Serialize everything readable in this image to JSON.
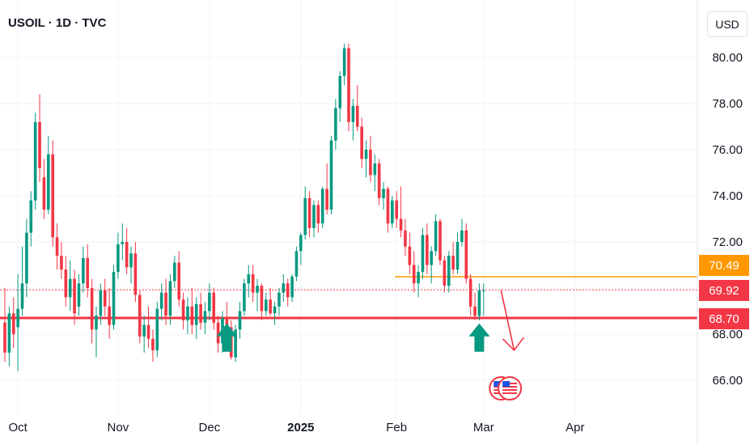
{
  "header": {
    "symbol_title": "USOIL · 1D · TVC",
    "currency": "USD"
  },
  "colors": {
    "up": "#089981",
    "down": "#f23645",
    "support": "#f23645",
    "resistance": "#ff9800",
    "last": "#f23645",
    "arrow": "#089981"
  },
  "price_tags": [
    {
      "value": "70.49",
      "kind": "resistance"
    },
    {
      "value": "69.92",
      "kind": "last"
    },
    {
      "value": "68.70",
      "kind": "support"
    }
  ],
  "chart_data": {
    "type": "candlestick",
    "title": "USOIL · 1D · TVC",
    "ylabel": "USD",
    "ylim": [
      65.0,
      81.3
    ],
    "y_ticks": [
      "66.00",
      "68.00",
      "70.00",
      "72.00",
      "74.00",
      "76.00",
      "78.00",
      "80.00"
    ],
    "x_ticks": [
      {
        "label": "Oct",
        "index": 3,
        "bold": false
      },
      {
        "label": "Nov",
        "index": 26,
        "bold": false
      },
      {
        "label": "Dec",
        "index": 47,
        "bold": false
      },
      {
        "label": "2025",
        "index": 68,
        "bold": true
      },
      {
        "label": "Feb",
        "index": 90,
        "bold": false
      },
      {
        "label": "Mar",
        "index": 110,
        "bold": false
      },
      {
        "label": "Apr",
        "index": 131,
        "bold": false
      }
    ],
    "x_count": 145,
    "candles": [
      [
        68.5,
        70.0,
        66.8,
        67.2
      ],
      [
        67.2,
        69.2,
        66.6,
        68.9
      ],
      [
        68.9,
        69.6,
        67.4,
        68.0
      ],
      [
        68.3,
        70.6,
        66.4,
        69.1
      ],
      [
        69.1,
        71.8,
        68.8,
        70.2
      ],
      [
        70.2,
        73.0,
        69.6,
        72.4
      ],
      [
        72.4,
        74.2,
        71.8,
        73.8
      ],
      [
        73.8,
        77.6,
        73.4,
        77.2
      ],
      [
        77.2,
        78.4,
        74.6,
        75.2
      ],
      [
        74.8,
        75.6,
        73.0,
        73.4
      ],
      [
        73.4,
        76.6,
        73.2,
        75.8
      ],
      [
        75.8,
        76.4,
        71.8,
        72.2
      ],
      [
        72.2,
        72.8,
        70.8,
        71.4
      ],
      [
        71.4,
        72.0,
        70.4,
        70.8
      ],
      [
        70.8,
        71.4,
        69.2,
        69.6
      ],
      [
        69.6,
        71.2,
        69.0,
        70.4
      ],
      [
        70.4,
        70.8,
        68.4,
        68.9
      ],
      [
        69.2,
        70.6,
        68.8,
        70.2
      ],
      [
        70.2,
        71.8,
        69.8,
        71.3
      ],
      [
        71.3,
        71.9,
        69.6,
        70.0
      ],
      [
        70.0,
        70.4,
        67.6,
        68.2
      ],
      [
        68.2,
        69.2,
        67.0,
        68.8
      ],
      [
        68.8,
        70.2,
        68.4,
        69.9
      ],
      [
        69.9,
        70.4,
        68.8,
        69.2
      ],
      [
        69.2,
        70.0,
        67.8,
        68.4
      ],
      [
        68.4,
        71.0,
        68.2,
        70.7
      ],
      [
        70.7,
        72.4,
        70.4,
        71.9
      ],
      [
        71.9,
        72.8,
        71.2,
        72.0
      ],
      [
        72.0,
        72.6,
        70.6,
        70.9
      ],
      [
        70.9,
        71.8,
        70.2,
        71.5
      ],
      [
        71.5,
        72.0,
        69.4,
        69.7
      ],
      [
        69.7,
        69.9,
        67.6,
        67.9
      ],
      [
        67.9,
        68.8,
        67.2,
        68.4
      ],
      [
        68.4,
        69.2,
        67.4,
        67.8
      ],
      [
        67.8,
        68.2,
        66.8,
        67.3
      ],
      [
        67.3,
        69.4,
        67.0,
        69.1
      ],
      [
        69.1,
        70.2,
        68.6,
        69.8
      ],
      [
        69.8,
        70.4,
        68.4,
        68.8
      ],
      [
        68.8,
        70.6,
        68.4,
        70.3
      ],
      [
        70.3,
        71.4,
        70.0,
        71.1
      ],
      [
        71.1,
        71.6,
        69.2,
        69.5
      ],
      [
        69.5,
        69.8,
        68.2,
        68.6
      ],
      [
        68.6,
        69.6,
        68.0,
        69.2
      ],
      [
        69.2,
        70.0,
        68.0,
        68.4
      ],
      [
        68.4,
        69.6,
        67.8,
        69.3
      ],
      [
        69.3,
        69.8,
        68.2,
        68.5
      ],
      [
        68.5,
        69.4,
        68.0,
        69.0
      ],
      [
        69.0,
        70.2,
        68.6,
        69.8
      ],
      [
        69.8,
        70.0,
        68.2,
        68.5
      ],
      [
        68.5,
        68.8,
        67.2,
        67.6
      ],
      [
        67.6,
        69.0,
        67.2,
        68.7
      ],
      [
        68.7,
        69.4,
        68.0,
        68.3
      ],
      [
        68.3,
        68.6,
        66.9,
        67.0
      ],
      [
        67.0,
        68.4,
        66.8,
        68.2
      ],
      [
        68.2,
        69.4,
        67.8,
        69.0
      ],
      [
        69.0,
        70.4,
        68.8,
        70.2
      ],
      [
        70.2,
        71.0,
        69.6,
        70.6
      ],
      [
        70.6,
        71.0,
        69.4,
        69.8
      ],
      [
        69.8,
        70.4,
        69.0,
        70.1
      ],
      [
        70.1,
        70.2,
        68.6,
        69.0
      ],
      [
        69.0,
        69.8,
        68.8,
        69.5
      ],
      [
        69.5,
        70.0,
        68.8,
        68.9
      ],
      [
        68.9,
        69.4,
        68.4,
        69.2
      ],
      [
        69.2,
        70.0,
        68.8,
        69.8
      ],
      [
        69.8,
        70.6,
        69.4,
        70.2
      ],
      [
        70.2,
        70.4,
        69.2,
        69.6
      ],
      [
        69.6,
        70.6,
        69.4,
        70.5
      ],
      [
        70.5,
        71.8,
        70.3,
        71.6
      ],
      [
        71.6,
        72.4,
        71.0,
        72.3
      ],
      [
        72.3,
        74.4,
        72.1,
        73.9
      ],
      [
        73.9,
        74.2,
        72.2,
        72.6
      ],
      [
        72.6,
        73.8,
        72.2,
        73.6
      ],
      [
        73.6,
        73.8,
        72.4,
        72.8
      ],
      [
        72.8,
        74.4,
        72.6,
        74.3
      ],
      [
        74.3,
        75.4,
        73.2,
        73.4
      ],
      [
        73.4,
        76.6,
        73.2,
        76.4
      ],
      [
        76.4,
        78.2,
        76.0,
        77.8
      ],
      [
        77.8,
        79.4,
        77.2,
        79.2
      ],
      [
        79.2,
        80.6,
        78.8,
        80.4
      ],
      [
        80.4,
        80.6,
        76.8,
        77.2
      ],
      [
        77.2,
        78.2,
        76.4,
        77.9
      ],
      [
        77.9,
        78.8,
        76.8,
        77.0
      ],
      [
        77.0,
        77.4,
        75.2,
        75.6
      ],
      [
        75.6,
        76.4,
        74.8,
        76.0
      ],
      [
        76.0,
        76.6,
        74.6,
        74.9
      ],
      [
        74.9,
        75.8,
        74.2,
        75.4
      ],
      [
        75.4,
        75.6,
        73.6,
        73.9
      ],
      [
        73.9,
        74.6,
        73.4,
        74.3
      ],
      [
        74.3,
        74.4,
        72.4,
        72.8
      ],
      [
        72.8,
        74.0,
        72.6,
        73.8
      ],
      [
        73.8,
        74.2,
        72.6,
        73.0
      ],
      [
        73.0,
        74.4,
        72.2,
        72.5
      ],
      [
        72.5,
        73.0,
        71.4,
        71.8
      ],
      [
        71.8,
        72.4,
        70.6,
        71.0
      ],
      [
        71.0,
        71.6,
        69.8,
        70.2
      ],
      [
        70.2,
        71.0,
        69.6,
        70.7
      ],
      [
        70.7,
        72.6,
        70.4,
        72.3
      ],
      [
        72.3,
        72.8,
        70.6,
        71.0
      ],
      [
        71.0,
        71.8,
        70.2,
        71.6
      ],
      [
        71.6,
        73.2,
        71.4,
        72.9
      ],
      [
        72.9,
        73.0,
        71.0,
        71.2
      ],
      [
        71.2,
        71.4,
        69.8,
        70.1
      ],
      [
        70.1,
        71.6,
        69.8,
        71.4
      ],
      [
        71.4,
        72.0,
        70.6,
        70.8
      ],
      [
        70.8,
        72.4,
        70.6,
        72.0
      ],
      [
        72.0,
        73.0,
        71.8,
        72.5
      ],
      [
        72.5,
        72.8,
        70.2,
        70.4
      ],
      [
        70.4,
        70.6,
        68.8,
        69.2
      ],
      [
        69.2,
        69.8,
        68.6,
        68.8
      ],
      [
        68.8,
        70.2,
        68.6,
        69.9
      ],
      [
        69.9,
        70.2,
        68.8,
        69.9
      ]
    ],
    "support_level": 68.7,
    "resistance_level": {
      "value": 70.49,
      "from_index": 90
    },
    "last_price": 69.92,
    "annotations": [
      {
        "type": "buy-arrow",
        "index": 51,
        "y": 67.8
      },
      {
        "type": "buy-arrow",
        "index": 109,
        "y": 67.8
      },
      {
        "type": "down-arrow",
        "from_index": 114,
        "from_y": 69.9,
        "to_index": 117,
        "to_y": 67.3
      },
      {
        "type": "event-flag-us",
        "index": 114,
        "y": 66.0
      },
      {
        "type": "event-flag-us",
        "index": 116,
        "y": 66.0
      }
    ]
  }
}
